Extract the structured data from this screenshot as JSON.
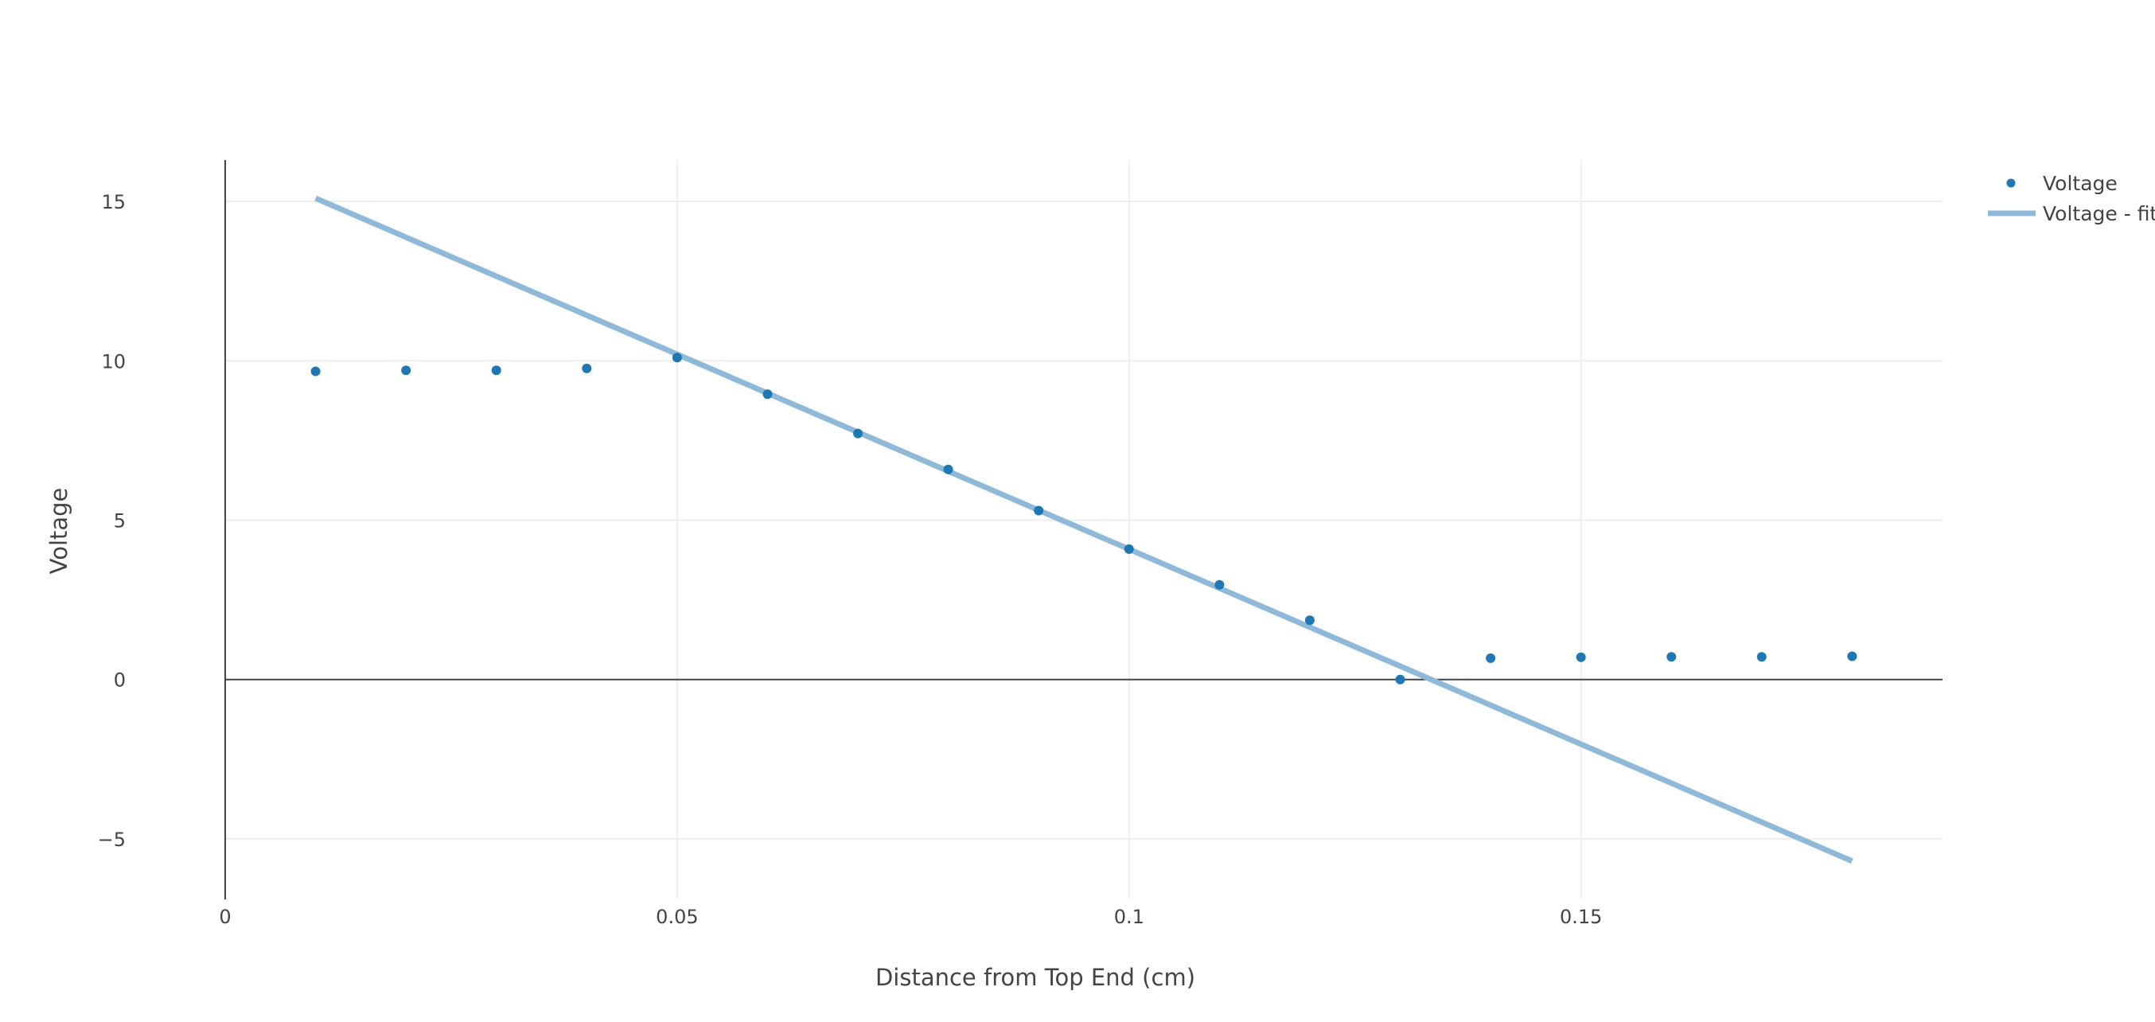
{
  "chart_data": {
    "type": "scatter",
    "title": "",
    "xlabel": "Distance from Top End (cm)",
    "ylabel": "Voltage",
    "xlim": [
      0,
      0.19
    ],
    "ylim": [
      -6.9,
      16.3
    ],
    "x_ticks": [
      {
        "value": 0,
        "label": "0"
      },
      {
        "value": 0.05,
        "label": "0.05"
      },
      {
        "value": 0.1,
        "label": "0.1"
      },
      {
        "value": 0.15,
        "label": "0.15"
      }
    ],
    "y_ticks": [
      {
        "value": -5,
        "label": "−5"
      },
      {
        "value": 0,
        "label": "0"
      },
      {
        "value": 5,
        "label": "5"
      },
      {
        "value": 10,
        "label": "10"
      },
      {
        "value": 15,
        "label": "15"
      }
    ],
    "grid": true,
    "legend_position": "top-right",
    "series": [
      {
        "name": "Voltage",
        "mode": "markers",
        "color": "#1f77b4",
        "x": [
          0.01,
          0.02,
          0.03,
          0.04,
          0.05,
          0.06,
          0.07,
          0.08,
          0.09,
          0.1,
          0.11,
          0.12,
          0.13,
          0.14,
          0.15,
          0.16,
          0.17,
          0.18
        ],
        "y": [
          9.67,
          9.7,
          9.7,
          9.76,
          10.1,
          8.95,
          7.72,
          6.59,
          5.3,
          4.09,
          2.97,
          1.86,
          0.0,
          0.67,
          0.7,
          0.71,
          0.71,
          0.73
        ]
      },
      {
        "name": "Voltage - fit",
        "mode": "lines",
        "color": "#8fb9d9",
        "x": [
          0.01,
          0.18
        ],
        "y": [
          15.1,
          -5.7
        ]
      }
    ]
  }
}
